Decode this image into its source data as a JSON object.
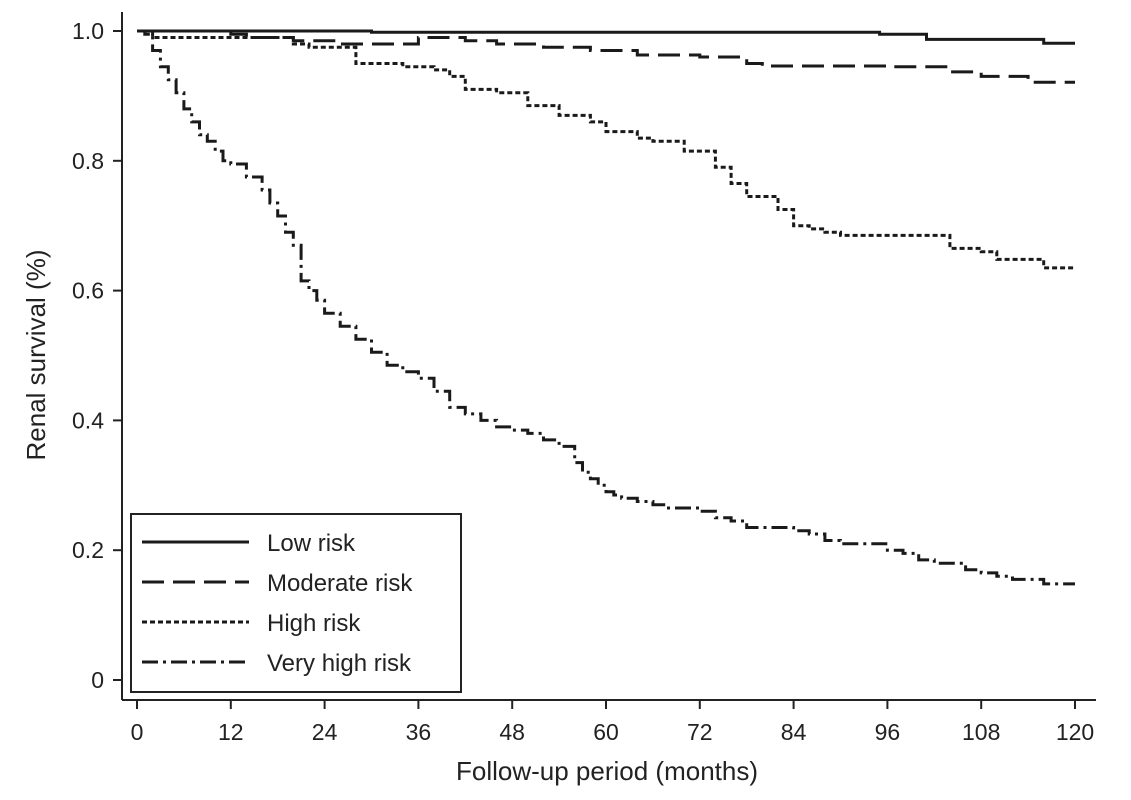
{
  "chart_data": {
    "type": "line",
    "step": true,
    "xlabel": "Follow-up period  (months)",
    "ylabel": "Renal survival (%)",
    "xlim": [
      0,
      120
    ],
    "ylim": [
      0,
      1.0
    ],
    "x_ticks": [
      0,
      12,
      24,
      36,
      48,
      60,
      72,
      84,
      96,
      108,
      120
    ],
    "x_tick_labels": [
      "0",
      "12",
      "24",
      "36",
      "48",
      "60",
      "72",
      "84",
      "96",
      "108",
      "120"
    ],
    "y_ticks": [
      0,
      0.2,
      0.4,
      0.6,
      0.8,
      1.0
    ],
    "y_tick_labels": [
      "0",
      "0.2",
      "0.4",
      "0.6",
      "0.8",
      "1.0"
    ],
    "grid": false,
    "legend_position": "bottom-left",
    "series": [
      {
        "name": "Low risk",
        "line_style": "solid",
        "x": [
          0,
          30,
          95,
          101,
          116,
          120
        ],
        "y": [
          1.0,
          0.998,
          0.995,
          0.987,
          0.981,
          0.981
        ]
      },
      {
        "name": "Moderate risk",
        "line_style": "dashed",
        "x": [
          0,
          12,
          14,
          20,
          26,
          36,
          42,
          46,
          52,
          58,
          64,
          72,
          78,
          80,
          84,
          96,
          104,
          108,
          114,
          120
        ],
        "y": [
          1.0,
          0.995,
          0.99,
          0.985,
          0.98,
          0.99,
          0.985,
          0.98,
          0.975,
          0.97,
          0.963,
          0.96,
          0.95,
          0.946,
          0.946,
          0.945,
          0.937,
          0.93,
          0.921,
          0.921
        ]
      },
      {
        "name": "High risk",
        "line_style": "dotted",
        "x": [
          0,
          2,
          12,
          20,
          22,
          28,
          34,
          38,
          40,
          42,
          46,
          50,
          54,
          58,
          60,
          64,
          66,
          70,
          74,
          76,
          78,
          82,
          84,
          86,
          88,
          90,
          104,
          108,
          110,
          116,
          120
        ],
        "y": [
          1.0,
          0.99,
          0.99,
          0.98,
          0.975,
          0.95,
          0.945,
          0.94,
          0.93,
          0.91,
          0.905,
          0.885,
          0.87,
          0.86,
          0.845,
          0.835,
          0.83,
          0.815,
          0.79,
          0.765,
          0.745,
          0.725,
          0.7,
          0.695,
          0.69,
          0.685,
          0.665,
          0.66,
          0.648,
          0.635,
          0.635
        ]
      },
      {
        "name": "Very high risk",
        "line_style": "dashdot",
        "x": [
          0,
          1,
          2,
          3,
          4,
          5,
          6,
          7,
          8,
          9,
          10,
          11,
          12,
          14,
          16,
          17,
          18,
          19,
          20,
          21,
          22,
          23,
          24,
          26,
          28,
          30,
          32,
          34,
          36,
          38,
          40,
          42,
          44,
          46,
          48,
          50,
          52,
          54,
          56,
          57,
          58,
          59,
          60,
          61,
          62,
          64,
          66,
          68,
          72,
          74,
          76,
          78,
          84,
          86,
          88,
          90,
          96,
          98,
          100,
          102,
          106,
          108,
          110,
          112,
          116,
          120
        ],
        "y": [
          1.0,
          0.995,
          0.97,
          0.945,
          0.925,
          0.905,
          0.88,
          0.86,
          0.84,
          0.83,
          0.815,
          0.8,
          0.795,
          0.775,
          0.755,
          0.735,
          0.715,
          0.69,
          0.67,
          0.615,
          0.6,
          0.585,
          0.565,
          0.545,
          0.525,
          0.505,
          0.485,
          0.475,
          0.465,
          0.445,
          0.42,
          0.41,
          0.4,
          0.39,
          0.385,
          0.38,
          0.37,
          0.36,
          0.335,
          0.32,
          0.31,
          0.3,
          0.29,
          0.285,
          0.28,
          0.275,
          0.27,
          0.265,
          0.26,
          0.25,
          0.245,
          0.235,
          0.23,
          0.225,
          0.215,
          0.21,
          0.2,
          0.195,
          0.185,
          0.18,
          0.17,
          0.165,
          0.16,
          0.155,
          0.148,
          0.148
        ]
      }
    ]
  }
}
